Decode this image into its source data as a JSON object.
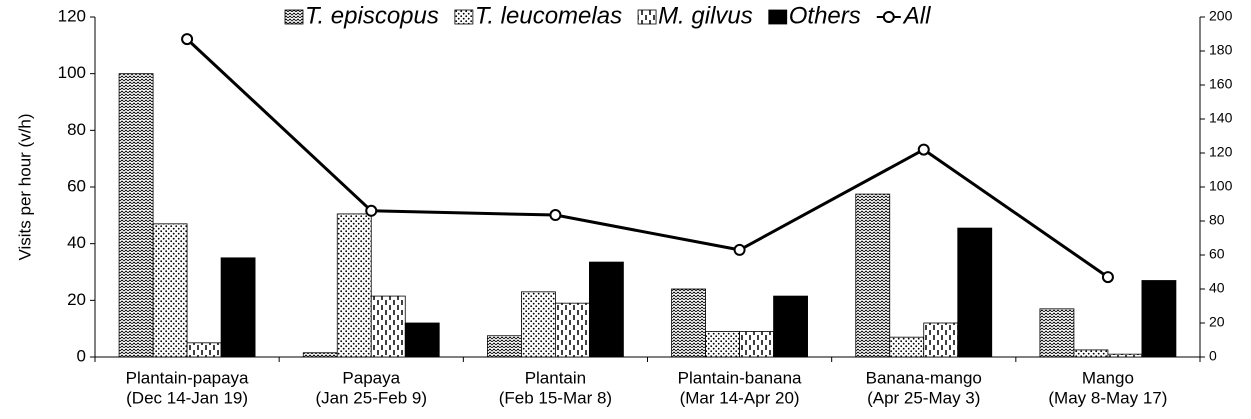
{
  "chart_data": {
    "type": "bar",
    "ylabel": "Visits per hour (v/h)",
    "categories": [
      [
        "Plantain-papaya",
        "(Dec 14-Jan 19)"
      ],
      [
        "Papaya",
        "(Jan 25-Feb 9)"
      ],
      [
        "Plantain",
        "(Feb 15-Mar 8)"
      ],
      [
        "Plantain-banana",
        "(Mar 14-Apr 20)"
      ],
      [
        "Banana-mango",
        "(Apr 25-May 3)"
      ],
      [
        "Mango",
        "(May 8-May 17)"
      ]
    ],
    "series": [
      {
        "name": "T. episcopus",
        "color": "#000000",
        "pattern": "wave",
        "values": [
          100,
          1.5,
          7.5,
          24,
          57.5,
          17
        ]
      },
      {
        "name": "T. leucomelas",
        "color": "#000000",
        "pattern": "dots",
        "values": [
          47,
          50.5,
          23,
          9,
          7,
          2.5
        ]
      },
      {
        "name": "M. gilvus",
        "color": "#000000",
        "pattern": "dashes",
        "values": [
          5,
          21.5,
          19,
          9,
          12,
          1
        ]
      },
      {
        "name": "Others",
        "color": "#000000",
        "pattern": "solid",
        "values": [
          35,
          12,
          33.5,
          21.5,
          45.5,
          27
        ]
      },
      {
        "name": "All",
        "color": "#000000",
        "type": "line",
        "axis": "y2",
        "values": [
          187,
          86,
          83.5,
          63,
          122,
          47
        ]
      }
    ],
    "ylim": [
      0,
      120
    ],
    "yticks": [
      0,
      20,
      40,
      60,
      80,
      100,
      120
    ],
    "y2lim": [
      0,
      200
    ],
    "y2ticks": [
      0,
      20,
      40,
      60,
      80,
      100,
      120,
      140,
      160,
      180,
      200
    ],
    "legend": "top",
    "grid": false
  }
}
